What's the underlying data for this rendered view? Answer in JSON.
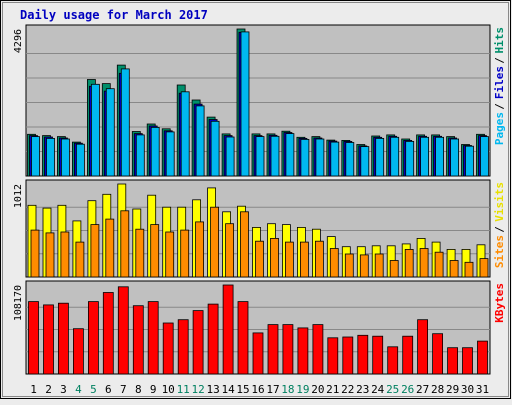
{
  "chart_data": {
    "type": "bar",
    "title": "Daily usage for March 2017",
    "categories": [
      "1",
      "2",
      "3",
      "4",
      "5",
      "6",
      "7",
      "8",
      "9",
      "10",
      "11",
      "12",
      "13",
      "14",
      "15",
      "16",
      "17",
      "18",
      "19",
      "20",
      "21",
      "22",
      "23",
      "24",
      "25",
      "26",
      "27",
      "28",
      "29",
      "30",
      "31"
    ],
    "weekend_days": [
      "4",
      "5",
      "11",
      "12",
      "18",
      "19",
      "25",
      "26"
    ],
    "legend": {
      "top": [
        "Hits",
        "Files",
        "Pages"
      ],
      "middle": [
        "Visits",
        "Sites"
      ],
      "bottom": [
        "KBytes"
      ]
    },
    "panels": [
      {
        "id": "hits-files-pages",
        "ymax_label": "4296",
        "ylim": [
          0,
          4296
        ],
        "series": [
          {
            "name": "Hits",
            "color": "#008f6b",
            "values": [
              1220,
              1180,
              1150,
              990,
              2820,
              2700,
              3240,
              1300,
              1520,
              1380,
              2660,
              2220,
              1720,
              1230,
              4296,
              1230,
              1230,
              1310,
              1130,
              1150,
              1050,
              1040,
              920,
              1170,
              1200,
              1080,
              1200,
              1200,
              1150,
              920,
              1220
            ]
          },
          {
            "name": "Files",
            "color": "#0000c8",
            "values": [
              1180,
              1140,
              1110,
              960,
              2620,
              2480,
              3000,
              1240,
              1460,
              1320,
              2420,
              2100,
              1650,
              1180,
              4200,
              1180,
              1190,
              1270,
              1100,
              1110,
              1020,
              1010,
              880,
              1130,
              1160,
              1040,
              1160,
              1160,
              1110,
              890,
              1180
            ]
          },
          {
            "name": "Pages",
            "color": "#00b8f0",
            "values": [
              1150,
              1100,
              1080,
              930,
              2680,
              2550,
              3130,
              1200,
              1420,
              1290,
              2460,
              2050,
              1600,
              1140,
              4210,
              1150,
              1160,
              1240,
              1070,
              1080,
              990,
              980,
              860,
              1100,
              1130,
              1010,
              1130,
              1130,
              1080,
              870,
              1150
            ]
          }
        ]
      },
      {
        "id": "visits-sites",
        "ymax_label": "1012",
        "ylim": [
          0,
          1012
        ],
        "series": [
          {
            "name": "Visits",
            "color": "#ffff00",
            "values": [
              780,
              750,
              780,
              610,
              830,
              900,
              1012,
              740,
              890,
              760,
              760,
              840,
              970,
              710,
              770,
              540,
              580,
              570,
              540,
              520,
              440,
              330,
              330,
              340,
              340,
              360,
              420,
              380,
              300,
              300,
              350
            ]
          },
          {
            "name": "Sites",
            "color": "#ff8c00",
            "values": [
              510,
              480,
              490,
              380,
              570,
              630,
              720,
              520,
              570,
              490,
              510,
              600,
              760,
              580,
              710,
              390,
              420,
              380,
              380,
              390,
              310,
              250,
              240,
              250,
              180,
              300,
              310,
              270,
              180,
              160,
              200
            ]
          }
        ]
      },
      {
        "id": "kbytes",
        "ymax_label": "108170",
        "ylim": [
          0,
          108170
        ],
        "series": [
          {
            "name": "KBytes",
            "color": "#ff0000",
            "values": [
              88000,
              84000,
              86000,
              55000,
              88000,
              99000,
              106000,
              83000,
              88000,
              62000,
              66000,
              77000,
              85000,
              108170,
              88000,
              50000,
              60000,
              60000,
              56000,
              60000,
              44000,
              45000,
              47000,
              46000,
              33000,
              46000,
              66000,
              49000,
              32000,
              32000,
              40000
            ]
          }
        ]
      }
    ]
  }
}
